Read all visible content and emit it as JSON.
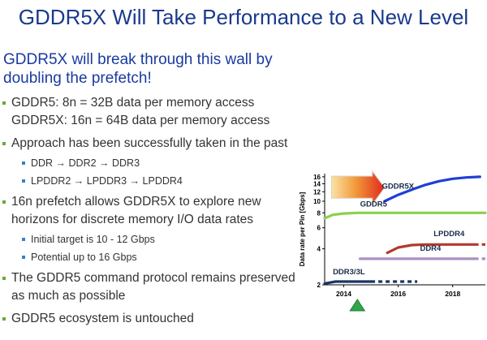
{
  "title": "GDDR5X Will Take Performance to a New Level",
  "headline": "GDDR5X will break through this wall by doubling the prefetch!",
  "bullets": [
    {
      "level": 1,
      "text": "GDDR5:     8n = 32B data per memory access"
    },
    {
      "level": 1,
      "text": "GDDR5X: 16n = 64B data per memory access",
      "continuation": true
    },
    {
      "level": 1,
      "text": "Approach has been successfully taken in the past"
    },
    {
      "level": 2,
      "text": "DDR → DDR2 → DDR3"
    },
    {
      "level": 2,
      "text": "LPDDR2 → LPDDR3 → LPDDR4"
    },
    {
      "level": 1,
      "text": "16n prefetch allows GDDR5X to explore new horizons for discrete memory I/O data rates"
    },
    {
      "level": 2,
      "text": "Initial target is 10 - 12 Gbps"
    },
    {
      "level": 2,
      "text": "Potential up to 16 Gbps"
    },
    {
      "level": 1,
      "text": "The GDDR5 command protocol remains preserved as much as possible"
    },
    {
      "level": 1,
      "text": "GDDR5 ecosystem is untouched"
    }
  ],
  "colors": {
    "title": "#1a3a8c",
    "headline": "#1a3aa0",
    "bullet_l1": "#6aa832",
    "bullet_l2": "#3a80c8"
  },
  "chart_data": {
    "type": "line",
    "ylabel": "Data rate per Pin [Gbps]",
    "y_ticks": [
      2,
      4,
      6,
      8,
      10,
      12,
      14,
      16
    ],
    "y_scale": "log",
    "x_ticks": [
      "2014",
      "2016",
      "2018"
    ],
    "xlim": [
      2013.3,
      2019.2
    ],
    "ylim": [
      2,
      17
    ],
    "grid": false,
    "current_marker_year": 2014.5,
    "arrow_color": "#e0281a",
    "series": [
      {
        "name": "GDDR5X",
        "color": "#1e3fd6",
        "style": "solid",
        "x": [
          2015.5,
          2016,
          2016.5,
          2017,
          2017.5,
          2018,
          2018.5,
          2019
        ],
        "y": [
          10,
          11.3,
          12.5,
          13.7,
          14.7,
          15.4,
          15.8,
          16
        ]
      },
      {
        "name": "GDDR5",
        "color": "#8ccf4e",
        "style": "solid",
        "x": [
          2013.3,
          2013.6,
          2014,
          2014.5,
          2015,
          2016,
          2017,
          2018,
          2019.2
        ],
        "y": [
          7.2,
          7.7,
          7.9,
          8,
          8,
          8,
          8,
          8,
          8
        ]
      },
      {
        "name": "LPDDR4",
        "color": "#b03a2e",
        "style": "solid",
        "x": [
          2015.6,
          2016,
          2016.5,
          2017,
          2018,
          2018.8
        ],
        "y": [
          3.7,
          4.1,
          4.3,
          4.35,
          4.35,
          4.35
        ]
      },
      {
        "name": "LPDDR4 (projected)",
        "color": "#b03a2e",
        "style": "dashed",
        "x": [
          2018.8,
          2019.2
        ],
        "y": [
          4.35,
          4.35
        ]
      },
      {
        "name": "DDR4",
        "color": "#a990c4",
        "style": "solid",
        "x": [
          2014.6,
          2016,
          2017,
          2018,
          2018.8
        ],
        "y": [
          3.3,
          3.3,
          3.3,
          3.3,
          3.3
        ]
      },
      {
        "name": "DDR4 (projected)",
        "color": "#a990c4",
        "style": "dashed",
        "x": [
          2018.8,
          2019.2
        ],
        "y": [
          3.3,
          3.3
        ]
      },
      {
        "name": "DDR3/3L",
        "color": "#1a3564",
        "style": "solid",
        "x": [
          2013.3,
          2013.7,
          2014,
          2014.5,
          2015
        ],
        "y": [
          2.05,
          2.13,
          2.13,
          2.13,
          2.13
        ]
      },
      {
        "name": "DDR3/3L (projected)",
        "color": "#1a3564",
        "style": "dashed",
        "x": [
          2015,
          2016.7
        ],
        "y": [
          2.13,
          2.13
        ]
      }
    ],
    "labels": [
      {
        "text": "GDDR5X",
        "x": 2015.4,
        "y": 12.7
      },
      {
        "text": "GDDR5",
        "x": 2014.6,
        "y": 9.0
      },
      {
        "text": "LPDDR4",
        "x": 2017.3,
        "y": 5.1
      },
      {
        "text": "DDR4",
        "x": 2016.8,
        "y": 3.85
      },
      {
        "text": "DDR3/3L",
        "x": 2013.6,
        "y": 2.45
      }
    ]
  }
}
